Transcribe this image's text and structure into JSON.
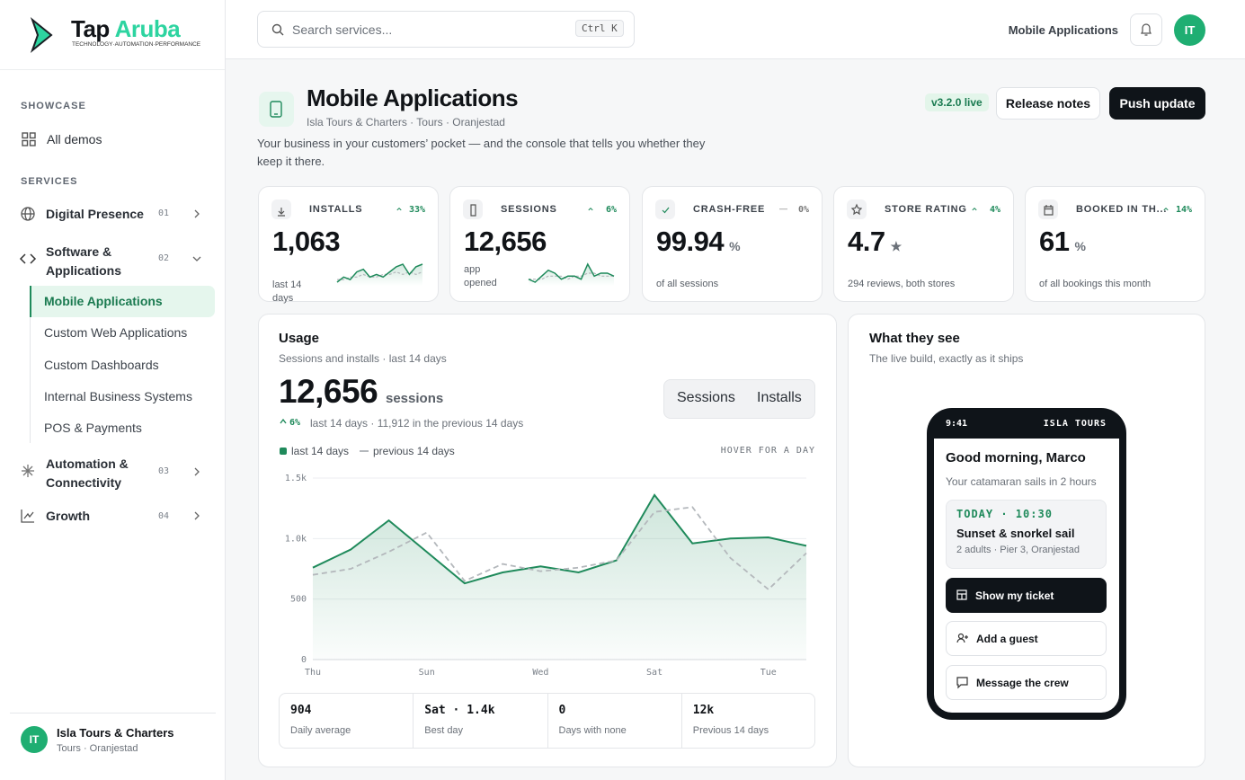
{
  "sidebar": {
    "brand_a": "Tap",
    "brand_b": "Aruba",
    "tagline": "TECHNOLOGY·AUTOMATION·PERFORMANCE",
    "showcase_label": "SHOWCASE",
    "all_demos": "All demos",
    "services_label": "SERVICES",
    "services": [
      {
        "label": "Digital Presence",
        "num": "01"
      },
      {
        "label": "Software & Applications",
        "num": "02",
        "children": [
          "Mobile Applications",
          "Custom Web Applications",
          "Custom Dashboards",
          "Internal Business Systems",
          "POS & Payments"
        ]
      },
      {
        "label": "Automation & Connectivity",
        "num": "03"
      },
      {
        "label": "Growth",
        "num": "04"
      }
    ],
    "account": {
      "avatar": "IT",
      "name": "Isla Tours & Charters",
      "sub": "Tours · Oranjestad"
    }
  },
  "topbar": {
    "search": "Search services...",
    "shortcut": "Ctrl K",
    "crumb": "Mobile Applications",
    "avatar": "IT"
  },
  "header": {
    "title": "Mobile Applications",
    "subtitle": "Isla Tours & Charters · Tours · Oranjestad",
    "description": "Your business in your customers’ pocket — and the console that tells you whether they keep it there.",
    "version": "v3.2.0 live",
    "buttons": [
      "Release notes",
      "Push update"
    ]
  },
  "kpis": [
    {
      "label": "INSTALLS",
      "change": "33%",
      "value": "1,063",
      "note": "last 14 days",
      "spark": [
        3,
        5,
        4,
        7,
        8,
        5,
        6,
        5,
        7,
        9,
        10,
        6,
        9,
        10
      ],
      "spark_prev": [
        4,
        4,
        5,
        5,
        6,
        5,
        5,
        6,
        6,
        7,
        6,
        7,
        6,
        7
      ]
    },
    {
      "label": "SESSIONS",
      "change": "6%",
      "value": "12,656",
      "note": "app opened",
      "spark": [
        5,
        4,
        6,
        8,
        7,
        5,
        6,
        6,
        5,
        10,
        6,
        7,
        7,
        6
      ],
      "spark_prev": [
        5,
        5,
        5,
        6,
        6,
        6,
        5,
        6,
        6,
        7,
        7,
        6,
        6,
        6
      ]
    },
    {
      "label": "CRASH-FREE",
      "change": "0%",
      "value": "99.94",
      "unit": "%",
      "note": "of all sessions"
    },
    {
      "label": "STORE RATING",
      "change": "4%",
      "value": "4.7",
      "unit": "★",
      "note": "294 reviews, both stores"
    },
    {
      "label": "BOOKED IN TH...",
      "change": "14%",
      "value": "61",
      "unit": "%",
      "note": "of all bookings this month"
    }
  ],
  "usage": {
    "title": "Usage",
    "subtitle": "Sessions and installs · last 14 days",
    "total": "12,656",
    "total_unit": "sessions",
    "change": "6%",
    "comparison": "last 14 days · 11,912 in the previous 14 days",
    "tabs": [
      "Sessions",
      "Installs"
    ],
    "hint": "HOVER FOR A DAY",
    "stats": [
      {
        "value": "904",
        "label": "Daily average"
      },
      {
        "value": "Sat · 1.4k",
        "label": "Best day"
      },
      {
        "value": "0",
        "label": "Days with none"
      },
      {
        "value": "12k",
        "label": "Previous 14 days"
      }
    ]
  },
  "chart_data": {
    "type": "line",
    "categories": [
      "Thu",
      null,
      null,
      "Sun",
      null,
      null,
      "Wed",
      null,
      null,
      "Sat",
      null,
      null,
      "Tue",
      null
    ],
    "series": [
      {
        "name": "last 14 days",
        "color": "#1f8a5b",
        "values": [
          760,
          910,
          1150,
          890,
          630,
          720,
          770,
          720,
          820,
          1360,
          960,
          1000,
          1010,
          940
        ]
      },
      {
        "name": "previous 14 days",
        "color": "#b4b8bc",
        "values": [
          700,
          750,
          890,
          1050,
          650,
          790,
          730,
          760,
          820,
          1220,
          1260,
          840,
          580,
          880
        ]
      }
    ],
    "ylim": [
      0,
      1500
    ],
    "yticks": [
      0,
      500,
      {
        "value": 1000,
        "label": "1.0k"
      },
      {
        "value": 1500,
        "label": "1.5k"
      }
    ],
    "grid": true
  },
  "preview": {
    "title": "What they see",
    "subtitle": "The live build, exactly as it ships",
    "time": "9:41",
    "carrier": "ISLA TOURS",
    "greeting": "Good morning, Marco",
    "greeting_sub": "Your catamaran sails in 2 hours",
    "ticket_when": "TODAY · 10:30",
    "ticket_name": "Sunset & snorkel sail",
    "ticket_detail": "2 adults · Pier 3, Oranjestad",
    "actions": [
      "Show my ticket",
      "Add a guest",
      "Message the crew"
    ]
  }
}
